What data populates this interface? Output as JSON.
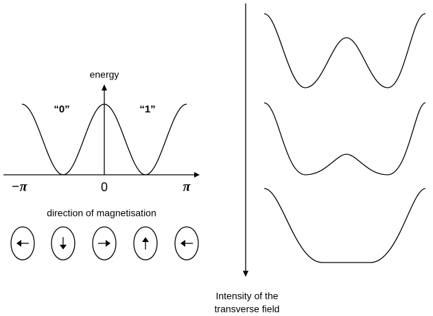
{
  "energy_plot": {
    "y_label": "energy",
    "well_labels": [
      "“0”",
      "“1”"
    ],
    "x_labels": [
      "−π",
      "0",
      "π"
    ],
    "caption": "direction of magnetisation"
  },
  "transverse_axis": {
    "label_lines": [
      "Intensity of the",
      "transverse field"
    ]
  }
}
